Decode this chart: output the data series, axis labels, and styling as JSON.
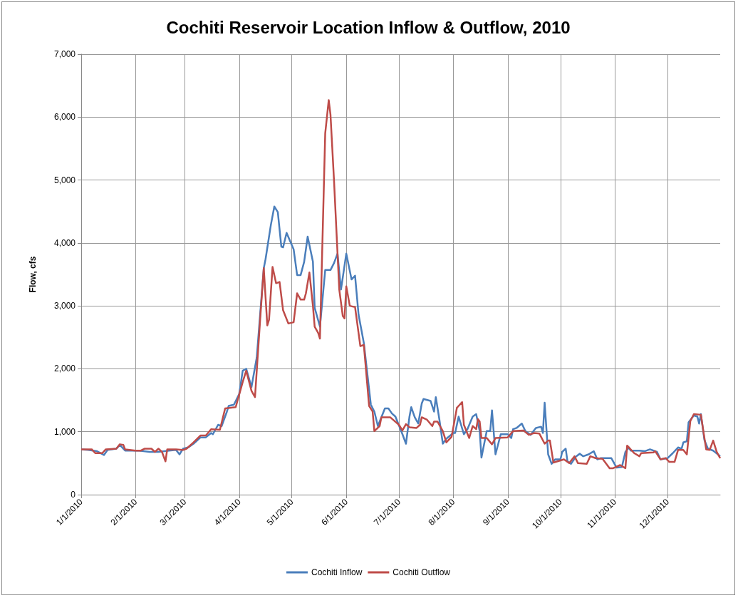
{
  "chart_data": {
    "type": "line",
    "title": "Cochiti Reservoir Location Inflow & Outflow, 2010",
    "ylabel": "Flow, cfs",
    "xlim": [
      "2010-01-01",
      "2010-12-31"
    ],
    "xticks": [
      {
        "value": "2010-01-01",
        "label": "1/1/2010"
      },
      {
        "value": "2010-02-01",
        "label": "2/1/2010"
      },
      {
        "value": "2010-03-01",
        "label": "3/1/2010"
      },
      {
        "value": "2010-04-01",
        "label": "4/1/2010"
      },
      {
        "value": "2010-05-01",
        "label": "5/1/2010"
      },
      {
        "value": "2010-06-01",
        "label": "6/1/2010"
      },
      {
        "value": "2010-07-01",
        "label": "7/1/2010"
      },
      {
        "value": "2010-08-01",
        "label": "8/1/2010"
      },
      {
        "value": "2010-09-01",
        "label": "9/1/2010"
      },
      {
        "value": "2010-10-01",
        "label": "10/1/2010"
      },
      {
        "value": "2010-11-01",
        "label": "11/1/2010"
      },
      {
        "value": "2010-12-01",
        "label": "12/1/2010"
      }
    ],
    "ylim": [
      0,
      7000
    ],
    "yticks": [
      0,
      {
        "value": 1000,
        "label": "1,000"
      },
      {
        "value": 2000,
        "label": "2,000"
      },
      {
        "value": 3000,
        "label": "3,000"
      },
      {
        "value": 4000,
        "label": "4,000"
      },
      {
        "value": 5000,
        "label": "5,000"
      },
      {
        "value": 6000,
        "label": "6,000"
      },
      {
        "value": 7000,
        "label": "7,000"
      }
    ],
    "grid": true,
    "legend": "bottom",
    "marker": "none",
    "line_style": "solid",
    "series": [
      {
        "name": "Cochiti Inflow",
        "color": "#4a7ebb",
        "x": [
          "2010-01-01",
          "2010-01-05",
          "2010-01-10",
          "2010-01-14",
          "2010-01-16",
          "2010-01-21",
          "2010-01-23",
          "2010-01-26",
          "2010-02-03",
          "2010-02-09",
          "2010-02-14",
          "2010-02-20",
          "2010-02-24",
          "2010-02-26",
          "2010-02-28",
          "2010-03-03",
          "2010-03-06",
          "2010-03-10",
          "2010-03-13",
          "2010-03-16",
          "2010-03-17",
          "2010-03-20",
          "2010-03-22",
          "2010-03-25",
          "2010-03-26",
          "2010-03-29",
          "2010-04-01",
          "2010-04-03",
          "2010-04-05",
          "2010-04-08",
          "2010-04-11",
          "2010-04-15",
          "2010-04-16",
          "2010-04-19",
          "2010-04-21",
          "2010-04-23",
          "2010-04-25",
          "2010-04-26",
          "2010-04-28",
          "2010-05-02",
          "2010-05-04",
          "2010-05-06",
          "2010-05-08",
          "2010-05-10",
          "2010-05-13",
          "2010-05-14",
          "2010-05-17",
          "2010-05-20",
          "2010-05-23",
          "2010-05-25",
          "2010-05-27",
          "2010-05-29",
          "2010-06-01",
          "2010-06-04",
          "2010-06-06",
          "2010-06-08",
          "2010-06-11",
          "2010-06-15",
          "2010-06-17",
          "2010-06-19",
          "2010-06-23",
          "2010-06-25",
          "2010-06-27",
          "2010-06-29",
          "2010-07-03",
          "2010-07-05",
          "2010-07-07",
          "2010-07-08",
          "2010-07-10",
          "2010-07-12",
          "2010-07-14",
          "2010-07-15",
          "2010-07-19",
          "2010-07-21",
          "2010-07-22",
          "2010-07-24",
          "2010-07-26",
          "2010-07-28",
          "2010-08-01",
          "2010-08-02",
          "2010-08-04",
          "2010-08-07",
          "2010-08-09",
          "2010-08-12",
          "2010-08-14",
          "2010-08-16",
          "2010-08-17",
          "2010-08-20",
          "2010-08-22",
          "2010-08-23",
          "2010-08-25",
          "2010-08-28",
          "2010-09-01",
          "2010-09-03",
          "2010-09-04",
          "2010-09-06",
          "2010-09-09",
          "2010-09-11",
          "2010-09-14",
          "2010-09-17",
          "2010-09-20",
          "2010-09-21",
          "2010-09-22",
          "2010-09-24",
          "2010-09-26",
          "2010-09-28",
          "2010-10-01",
          "2010-10-02",
          "2010-10-04",
          "2010-10-05",
          "2010-10-07",
          "2010-10-10",
          "2010-10-12",
          "2010-10-14",
          "2010-10-17",
          "2010-10-20",
          "2010-10-22",
          "2010-10-24",
          "2010-10-30",
          "2010-11-02",
          "2010-11-05",
          "2010-11-07",
          "2010-11-09",
          "2010-11-10",
          "2010-11-15",
          "2010-11-18",
          "2010-11-21",
          "2010-11-25",
          "2010-11-27",
          "2010-12-01",
          "2010-12-04",
          "2010-12-07",
          "2010-12-09",
          "2010-12-10",
          "2010-12-12",
          "2010-12-13",
          "2010-12-16",
          "2010-12-18",
          "2010-12-19",
          "2010-12-20",
          "2010-12-22",
          "2010-12-24",
          "2010-12-27",
          "2010-12-31"
        ],
        "values": [
          720,
          710,
          690,
          630,
          710,
          730,
          790,
          700,
          700,
          680,
          680,
          700,
          710,
          640,
          730,
          750,
          810,
          910,
          910,
          980,
          960,
          1110,
          1090,
          1320,
          1410,
          1430,
          1600,
          1970,
          2000,
          1710,
          2180,
          3600,
          3740,
          4280,
          4580,
          4490,
          3940,
          3930,
          4160,
          3900,
          3490,
          3490,
          3700,
          4100,
          3700,
          2970,
          2670,
          3570,
          3570,
          3680,
          3830,
          3260,
          3830,
          3420,
          3480,
          2860,
          2410,
          1430,
          1320,
          1090,
          1370,
          1370,
          1290,
          1240,
          960,
          810,
          1240,
          1390,
          1230,
          1130,
          1450,
          1520,
          1490,
          1320,
          1550,
          1200,
          810,
          890,
          980,
          980,
          1240,
          960,
          1040,
          1240,
          1280,
          1010,
          590,
          1010,
          1010,
          1340,
          640,
          960,
          960,
          900,
          1040,
          1060,
          1130,
          1010,
          950,
          1060,
          1080,
          980,
          1460,
          640,
          490,
          560,
          560,
          680,
          730,
          530,
          490,
          610,
          650,
          610,
          640,
          690,
          560,
          580,
          580,
          430,
          440,
          680,
          750,
          700,
          700,
          690,
          720,
          680,
          560,
          580,
          660,
          750,
          730,
          830,
          850,
          1150,
          1260,
          1240,
          1130,
          1280,
          870,
          730,
          700,
          610
        ]
      },
      {
        "name": "Cochiti Outflow",
        "color": "#be4b48",
        "x": [
          "2010-01-01",
          "2010-01-07",
          "2010-01-09",
          "2010-01-13",
          "2010-01-15",
          "2010-01-21",
          "2010-01-23",
          "2010-01-25",
          "2010-01-26",
          "2010-02-01",
          "2010-02-04",
          "2010-02-06",
          "2010-02-10",
          "2010-02-12",
          "2010-02-14",
          "2010-02-16",
          "2010-02-18",
          "2010-02-19",
          "2010-02-24",
          "2010-02-28",
          "2010-03-02",
          "2010-03-06",
          "2010-03-10",
          "2010-03-13",
          "2010-03-16",
          "2010-03-21",
          "2010-03-24",
          "2010-03-30",
          "2010-04-02",
          "2010-04-03",
          "2010-04-05",
          "2010-04-08",
          "2010-04-10",
          "2010-04-13",
          "2010-04-15",
          "2010-04-17",
          "2010-04-18",
          "2010-04-20",
          "2010-04-22",
          "2010-04-24",
          "2010-04-26",
          "2010-04-29",
          "2010-05-02",
          "2010-05-04",
          "2010-05-06",
          "2010-05-08",
          "2010-05-09",
          "2010-05-11",
          "2010-05-13",
          "2010-05-14",
          "2010-05-16",
          "2010-05-17",
          "2010-05-20",
          "2010-05-22",
          "2010-05-23",
          "2010-05-25",
          "2010-05-28",
          "2010-05-30",
          "2010-05-31",
          "2010-06-01",
          "2010-06-03",
          "2010-06-06",
          "2010-06-09",
          "2010-06-11",
          "2010-06-14",
          "2010-06-16",
          "2010-06-17",
          "2010-06-20",
          "2010-06-21",
          "2010-06-26",
          "2010-07-01",
          "2010-07-03",
          "2010-07-05",
          "2010-07-07",
          "2010-07-11",
          "2010-07-13",
          "2010-07-14",
          "2010-07-17",
          "2010-07-20",
          "2010-07-21",
          "2010-07-23",
          "2010-07-26",
          "2010-07-28",
          "2010-07-31",
          "2010-08-03",
          "2010-08-04",
          "2010-08-06",
          "2010-08-07",
          "2010-08-10",
          "2010-08-12",
          "2010-08-14",
          "2010-08-15",
          "2010-08-16",
          "2010-08-17",
          "2010-08-20",
          "2010-08-23",
          "2010-08-25",
          "2010-09-01",
          "2010-09-04",
          "2010-09-10",
          "2010-09-13",
          "2010-09-16",
          "2010-09-19",
          "2010-09-22",
          "2010-09-24",
          "2010-09-25",
          "2010-09-27",
          "2010-10-03",
          "2010-10-06",
          "2010-10-09",
          "2010-10-11",
          "2010-10-16",
          "2010-10-18",
          "2010-10-21",
          "2010-10-25",
          "2010-10-29",
          "2010-10-31",
          "2010-11-04",
          "2010-11-07",
          "2010-11-08",
          "2010-11-12",
          "2010-11-15",
          "2010-11-16",
          "2010-11-23",
          "2010-11-24",
          "2010-11-27",
          "2010-11-30",
          "2010-12-02",
          "2010-12-05",
          "2010-12-07",
          "2010-12-10",
          "2010-12-12",
          "2010-12-14",
          "2010-12-16",
          "2010-12-20",
          "2010-12-23",
          "2010-12-25",
          "2010-12-27",
          "2010-12-29",
          "2010-12-31"
        ],
        "values": [
          720,
          720,
          660,
          660,
          720,
          730,
          800,
          790,
          720,
          700,
          700,
          730,
          730,
          680,
          730,
          680,
          530,
          720,
          720,
          710,
          730,
          830,
          940,
          940,
          1040,
          1030,
          1370,
          1390,
          1690,
          1790,
          1970,
          1650,
          1550,
          2810,
          3600,
          2690,
          2780,
          3620,
          3360,
          3380,
          2930,
          2720,
          2740,
          3200,
          3100,
          3100,
          3200,
          3530,
          3000,
          2670,
          2570,
          2480,
          5740,
          6270,
          6040,
          5000,
          3260,
          2840,
          2800,
          3310,
          3000,
          2980,
          2360,
          2380,
          1410,
          1320,
          1010,
          1090,
          1230,
          1230,
          1110,
          1020,
          1120,
          1070,
          1060,
          1110,
          1230,
          1190,
          1090,
          1160,
          1160,
          1010,
          830,
          920,
          1380,
          1410,
          1470,
          1110,
          900,
          1090,
          1040,
          1200,
          1160,
          900,
          900,
          800,
          900,
          910,
          1010,
          1020,
          950,
          980,
          970,
          810,
          860,
          860,
          510,
          560,
          500,
          610,
          500,
          490,
          610,
          580,
          570,
          420,
          420,
          470,
          420,
          780,
          660,
          610,
          660,
          670,
          690,
          560,
          580,
          520,
          520,
          710,
          710,
          640,
          1170,
          1280,
          1270,
          720,
          710,
          860,
          680,
          580
        ]
      }
    ]
  }
}
